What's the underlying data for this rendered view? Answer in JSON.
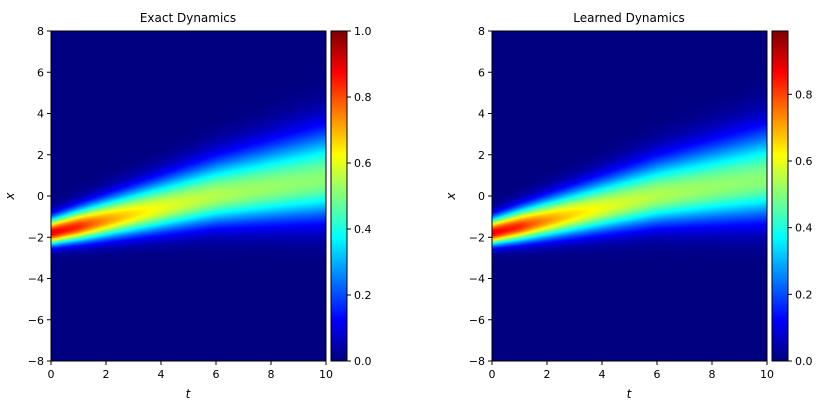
{
  "chart_data": [
    {
      "type": "heatmap",
      "title": "Exact Dynamics",
      "xlabel": "t",
      "ylabel": "x",
      "xlim": [
        0,
        10
      ],
      "ylim": [
        -8,
        8
      ],
      "xticks": [
        "0",
        "2",
        "4",
        "6",
        "8",
        "10"
      ],
      "yticks": [
        "−8",
        "−6",
        "−4",
        "−2",
        "0",
        "2",
        "4",
        "6",
        "8"
      ],
      "colormap": "jet",
      "colorbar": {
        "min": 0.0,
        "max": 1.0,
        "ticks": [
          "0.0",
          "0.2",
          "0.4",
          "0.6",
          "0.8",
          "1.0"
        ]
      },
      "field": {
        "peak_t0": 1.0,
        "peak_x0": -1.8,
        "center_x": [
          -1.8,
          -1.2,
          -0.6,
          0.0,
          0.4,
          0.8
        ],
        "center_t": [
          0,
          2,
          4,
          6,
          8,
          10
        ]
      }
    },
    {
      "type": "heatmap",
      "title": "Learned Dynamics",
      "xlabel": "t",
      "ylabel": "x",
      "xlim": [
        0,
        10
      ],
      "ylim": [
        -8,
        8
      ],
      "xticks": [
        "0",
        "2",
        "4",
        "6",
        "8",
        "10"
      ],
      "yticks": [
        "−8",
        "−6",
        "−4",
        "−2",
        "0",
        "2",
        "4",
        "6",
        "8"
      ],
      "colormap": "jet",
      "colorbar": {
        "min": 0.0,
        "max": 0.99,
        "ticks": [
          "0.0",
          "0.2",
          "0.4",
          "0.6",
          "0.8"
        ]
      },
      "field": {
        "peak_t0": 0.99,
        "peak_x0": -1.8,
        "center_x": [
          -1.8,
          -1.2,
          -0.6,
          0.0,
          0.4,
          0.8
        ],
        "center_t": [
          0,
          2,
          4,
          6,
          8,
          10
        ]
      }
    }
  ]
}
